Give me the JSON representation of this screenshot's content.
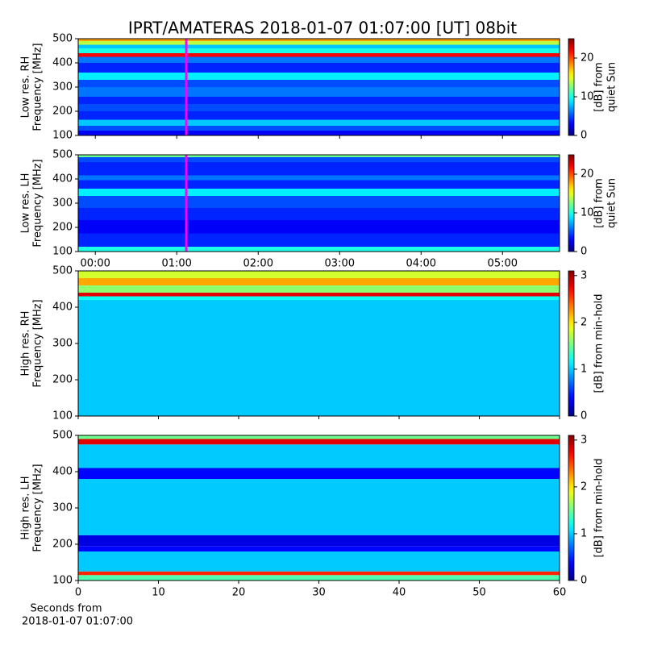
{
  "title": "IPRT/AMATERAS 2018-01-07 01:07:00 [UT]   08bit",
  "xlabel": [
    "Seconds from",
    "2018-01-07 01:07:00"
  ],
  "chart_data": [
    {
      "type": "heatmap",
      "ylabel": [
        "Low res. RH",
        "Frequency [MHz]"
      ],
      "ylim": [
        100,
        500
      ],
      "yticks": [
        100,
        200,
        300,
        400,
        500
      ],
      "xlim": [
        -0.21,
        5.7
      ],
      "marker_x": 1.117,
      "marker_color": "#ff00ff",
      "ybins": [
        100,
        120,
        140,
        165,
        200,
        230,
        260,
        300,
        330,
        360,
        400,
        425,
        440,
        460,
        475,
        490,
        500
      ],
      "values": [
        3,
        5,
        8,
        4,
        5,
        4,
        6,
        5,
        9,
        4,
        6,
        22,
        10,
        8,
        14,
        18
      ],
      "clim": [
        0,
        25
      ],
      "cticks": [
        0,
        10,
        20
      ],
      "clabel": [
        "[dB] from",
        "quiet Sun"
      ]
    },
    {
      "type": "heatmap",
      "ylabel": [
        "Low res. LH",
        "Frequency [MHz]"
      ],
      "ylim": [
        100,
        500
      ],
      "yticks": [
        100,
        200,
        300,
        400,
        500
      ],
      "xlim": [
        -0.21,
        5.7
      ],
      "marker_x": 1.117,
      "marker_color": "#ff00ff",
      "xticks": [
        {
          "value": 0,
          "label": "00:00"
        },
        {
          "value": 1,
          "label": "01:00"
        },
        {
          "value": 2,
          "label": "02:00"
        },
        {
          "value": 3,
          "label": "03:00"
        },
        {
          "value": 4,
          "label": "04:00"
        },
        {
          "value": 5,
          "label": "05:00"
        }
      ],
      "ybins": [
        100,
        120,
        175,
        230,
        280,
        330,
        360,
        395,
        415,
        470,
        490,
        500
      ],
      "values": [
        10,
        4,
        3,
        4,
        5,
        9,
        4,
        6,
        4,
        5,
        12
      ],
      "clim": [
        0,
        25
      ],
      "cticks": [
        0,
        10,
        20
      ],
      "clabel": [
        "[dB] from",
        "quiet Sun"
      ]
    },
    {
      "type": "heatmap",
      "ylabel": [
        "High res. RH",
        "Frequency [MHz]"
      ],
      "ylim": [
        100,
        500
      ],
      "yticks": [
        100,
        200,
        300,
        400,
        500
      ],
      "xlim": [
        0,
        60
      ],
      "ybins": [
        100,
        420,
        430,
        440,
        460,
        480,
        500
      ],
      "values": [
        1.0,
        1.2,
        2.8,
        1.6,
        2.2,
        1.8
      ],
      "clim": [
        0,
        3.1
      ],
      "cticks": [
        0,
        1,
        2,
        3
      ],
      "clabel": [
        "[dB] from min-hold"
      ]
    },
    {
      "type": "heatmap",
      "ylabel": [
        "High res. LH",
        "Frequency [MHz]"
      ],
      "ylim": [
        100,
        500
      ],
      "yticks": [
        100,
        200,
        300,
        400,
        500
      ],
      "xlim": [
        0,
        60
      ],
      "xticks": [
        0,
        10,
        20,
        30,
        40,
        50,
        60
      ],
      "ybins": [
        100,
        115,
        125,
        180,
        195,
        225,
        380,
        410,
        475,
        490,
        500
      ],
      "values": [
        1.4,
        2.6,
        1.0,
        0.4,
        0.3,
        1.0,
        0.4,
        1.0,
        2.8,
        1.5
      ],
      "clim": [
        0,
        3.1
      ],
      "cticks": [
        0,
        1,
        2,
        3
      ],
      "clabel": [
        "[dB] from min-hold"
      ]
    }
  ]
}
